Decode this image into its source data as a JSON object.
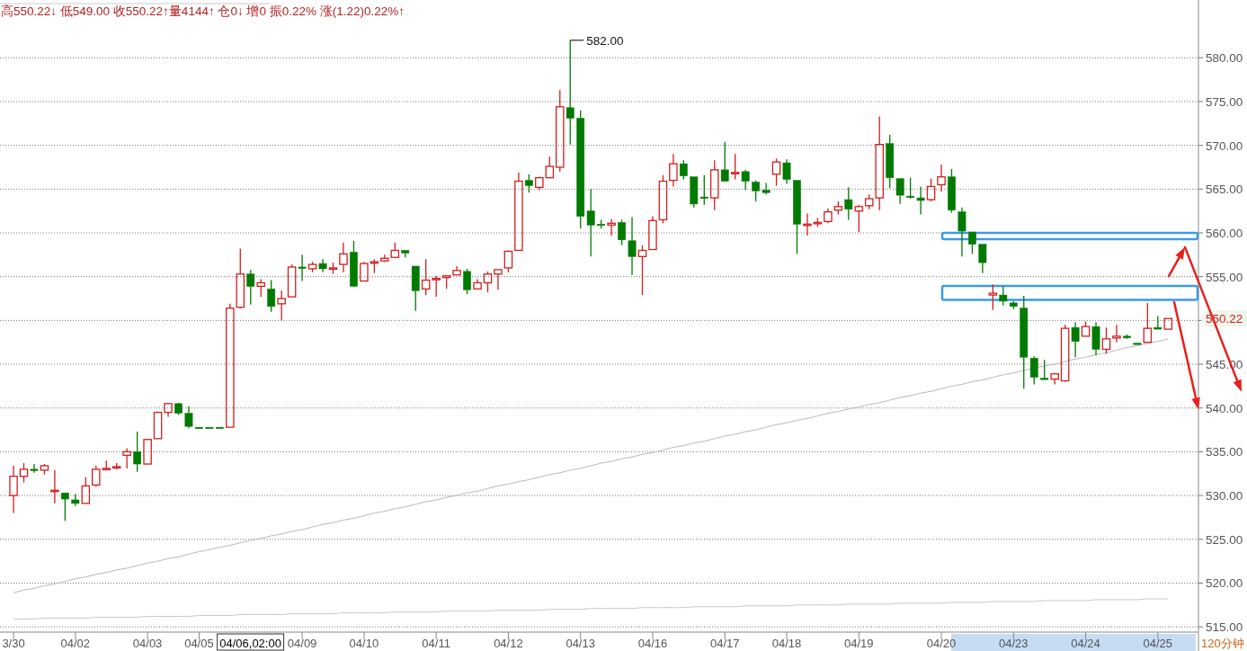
{
  "chart_data": {
    "type": "candlestick",
    "title": "高550.22↓ 低549.00 收550.22↑量4144↑ 仓0↓ 增0 振0.22% 涨(1.22)0.22%↑",
    "categories": [
      "3/30",
      null,
      null,
      null,
      null,
      null,
      "04/02",
      null,
      null,
      null,
      null,
      null,
      null,
      "04/03",
      null,
      null,
      null,
      null,
      "04/05",
      null,
      null,
      null,
      null,
      null,
      null,
      null,
      null,
      null,
      "04/09",
      null,
      null,
      null,
      null,
      null,
      "04/10",
      null,
      null,
      null,
      null,
      null,
      null,
      "04/11",
      null,
      null,
      null,
      null,
      null,
      null,
      "04/12",
      null,
      null,
      null,
      null,
      null,
      null,
      "04/13",
      null,
      null,
      null,
      null,
      null,
      null,
      "04/16",
      null,
      null,
      null,
      null,
      null,
      null,
      "04/17",
      null,
      null,
      null,
      null,
      null,
      "04/18",
      null,
      null,
      null,
      null,
      null,
      null,
      "04/19",
      null,
      null,
      null,
      null,
      null,
      null,
      null,
      "04/20",
      null,
      null,
      null,
      null,
      null,
      null,
      "04/23",
      null,
      null,
      null,
      null,
      null,
      null,
      "04/24",
      null,
      null,
      null,
      null,
      null,
      null,
      "04/25",
      null
    ],
    "ohlc": [
      [
        530.0,
        533.4,
        528.0,
        532.2
      ],
      [
        532.2,
        533.7,
        531.5,
        533.0
      ],
      [
        533.0,
        533.6,
        532.6,
        532.9
      ],
      [
        532.9,
        533.6,
        532.4,
        533.4
      ],
      [
        530.6,
        532.9,
        529.1,
        530.6
      ],
      [
        530.3,
        530.3,
        527.1,
        529.6
      ],
      [
        529.5,
        530.2,
        528.8,
        529.1
      ],
      [
        529.1,
        532.1,
        529.1,
        531.1
      ],
      [
        531.2,
        533.4,
        531.0,
        533.0
      ],
      [
        533.0,
        534.0,
        533.0,
        533.1
      ],
      [
        533.2,
        533.7,
        533.0,
        533.3
      ],
      [
        534.6,
        535.4,
        533.1,
        535.0
      ],
      [
        535.0,
        537.3,
        532.7,
        533.6
      ],
      [
        533.6,
        536.5,
        533.6,
        536.4
      ],
      [
        536.5,
        539.6,
        536.5,
        539.5
      ],
      [
        539.5,
        540.6,
        539.0,
        540.5
      ],
      [
        540.5,
        540.6,
        539.2,
        539.4
      ],
      [
        539.4,
        540.2,
        537.7,
        537.9
      ],
      [
        537.8,
        537.8,
        537.7,
        537.7
      ],
      [
        537.8,
        537.8,
        537.7,
        537.7
      ],
      [
        537.8,
        537.8,
        537.7,
        537.7
      ],
      [
        537.8,
        551.9,
        537.8,
        551.4
      ],
      [
        551.5,
        558.2,
        551.4,
        555.3
      ],
      [
        555.3,
        555.8,
        551.8,
        553.9
      ],
      [
        553.9,
        554.7,
        552.7,
        554.3
      ],
      [
        553.6,
        554.6,
        551.0,
        551.6
      ],
      [
        551.9,
        553.4,
        550.0,
        552.5
      ],
      [
        552.7,
        556.4,
        552.7,
        556.1
      ],
      [
        556.1,
        557.5,
        554.5,
        556.0
      ],
      [
        555.9,
        556.7,
        555.5,
        556.4
      ],
      [
        556.5,
        557.0,
        555.5,
        555.9
      ],
      [
        555.9,
        556.6,
        555.3,
        556.0
      ],
      [
        556.4,
        558.9,
        555.5,
        557.6
      ],
      [
        557.8,
        559.1,
        553.8,
        553.9
      ],
      [
        554.5,
        556.7,
        554.5,
        556.5
      ],
      [
        556.6,
        557.0,
        555.4,
        556.7
      ],
      [
        556.8,
        557.5,
        556.7,
        557.1
      ],
      [
        557.2,
        558.9,
        557.2,
        558.0
      ],
      [
        558.0,
        558.0,
        557.2,
        557.7
      ],
      [
        556.2,
        556.2,
        551.1,
        553.4
      ],
      [
        553.6,
        557.0,
        552.9,
        554.6
      ],
      [
        554.7,
        555.1,
        552.7,
        554.8
      ],
      [
        554.9,
        555.1,
        553.6,
        555.1
      ],
      [
        555.2,
        556.2,
        555.2,
        555.7
      ],
      [
        555.6,
        555.9,
        553.0,
        553.5
      ],
      [
        553.6,
        554.7,
        553.6,
        554.3
      ],
      [
        554.3,
        555.6,
        553.2,
        555.3
      ],
      [
        555.3,
        555.8,
        553.5,
        555.8
      ],
      [
        556.0,
        558.0,
        555.5,
        557.9
      ],
      [
        558.0,
        566.9,
        558.0,
        565.9
      ],
      [
        566.0,
        566.7,
        564.6,
        565.4
      ],
      [
        565.2,
        566.4,
        564.9,
        566.3
      ],
      [
        566.3,
        568.7,
        566.3,
        567.6
      ],
      [
        567.5,
        576.3,
        567.0,
        574.4
      ],
      [
        574.3,
        582.0,
        570.1,
        573.1
      ],
      [
        573.1,
        574.0,
        560.5,
        561.9
      ],
      [
        562.5,
        565.0,
        557.3,
        560.9
      ],
      [
        561.0,
        561.5,
        560.5,
        560.9
      ],
      [
        560.9,
        561.6,
        559.7,
        561.1
      ],
      [
        561.2,
        561.5,
        558.6,
        559.2
      ],
      [
        559.1,
        561.8,
        555.2,
        557.3
      ],
      [
        557.3,
        558.6,
        552.9,
        558.0
      ],
      [
        558.1,
        561.9,
        558.1,
        561.4
      ],
      [
        561.5,
        566.6,
        561.1,
        565.9
      ],
      [
        566.0,
        569.0,
        565.3,
        567.9
      ],
      [
        567.9,
        568.3,
        566.1,
        566.5
      ],
      [
        566.4,
        566.4,
        562.9,
        563.3
      ],
      [
        564.1,
        566.6,
        563.2,
        564.0
      ],
      [
        564.0,
        568.3,
        562.6,
        567.2
      ],
      [
        567.2,
        570.4,
        565.9,
        565.9
      ],
      [
        566.8,
        569.0,
        566.1,
        566.9
      ],
      [
        567.0,
        567.2,
        564.9,
        565.9
      ],
      [
        565.8,
        566.0,
        563.6,
        564.8
      ],
      [
        564.9,
        565.7,
        564.4,
        564.6
      ],
      [
        566.7,
        568.5,
        565.4,
        568.1
      ],
      [
        568.0,
        568.4,
        565.6,
        566.1
      ],
      [
        566.0,
        566.0,
        557.6,
        561.0
      ],
      [
        560.9,
        562.2,
        559.7,
        561.0
      ],
      [
        561.1,
        561.7,
        560.7,
        561.2
      ],
      [
        561.3,
        562.8,
        561.1,
        562.4
      ],
      [
        562.6,
        563.6,
        562.1,
        563.0
      ],
      [
        563.8,
        565.2,
        561.5,
        562.7
      ],
      [
        562.5,
        563.2,
        560.1,
        563.0
      ],
      [
        563.1,
        564.4,
        562.7,
        563.9
      ],
      [
        564.0,
        573.3,
        562.6,
        570.1
      ],
      [
        570.2,
        571.2,
        565.1,
        566.3
      ],
      [
        566.2,
        566.2,
        563.3,
        564.3
      ],
      [
        564.2,
        566.3,
        563.9,
        564.1
      ],
      [
        564.0,
        565.3,
        562.1,
        563.7
      ],
      [
        563.8,
        566.2,
        563.6,
        565.3
      ],
      [
        565.5,
        567.8,
        564.7,
        566.4
      ],
      [
        566.4,
        567.3,
        562.3,
        562.6
      ],
      [
        562.4,
        562.9,
        557.3,
        560.2
      ],
      [
        560.1,
        560.1,
        557.6,
        558.7
      ],
      [
        558.7,
        558.7,
        555.4,
        556.6
      ],
      [
        552.9,
        554.1,
        551.2,
        553.1
      ],
      [
        552.9,
        553.9,
        551.7,
        552.2
      ],
      [
        552.0,
        552.2,
        551.3,
        551.6
      ],
      [
        551.4,
        552.8,
        542.2,
        545.8
      ],
      [
        545.7,
        545.9,
        542.7,
        543.5
      ],
      [
        543.4,
        545.5,
        543.2,
        543.3
      ],
      [
        543.3,
        544.0,
        542.7,
        543.9
      ],
      [
        543.1,
        549.5,
        543.0,
        549.1
      ],
      [
        549.2,
        549.8,
        545.8,
        547.6
      ],
      [
        548.2,
        549.9,
        548.2,
        549.3
      ],
      [
        549.3,
        549.8,
        546.0,
        546.7
      ],
      [
        546.7,
        549.2,
        546.2,
        547.9
      ],
      [
        548.0,
        549.5,
        547.5,
        548.2
      ],
      [
        548.2,
        548.4,
        547.9,
        548.0
      ],
      [
        547.4,
        547.4,
        547.3,
        547.3
      ],
      [
        547.5,
        552.0,
        547.5,
        549.1
      ],
      [
        549.2,
        550.5,
        549.0,
        549.0
      ],
      [
        549.0,
        550.22,
        549.0,
        550.22
      ]
    ],
    "ylim": [
      514.4,
      586.6
    ],
    "yticks": [
      {
        "value": 515,
        "label": "515.00"
      },
      {
        "value": 520,
        "label": "520.00"
      },
      {
        "value": 525,
        "label": "525.00"
      },
      {
        "value": 530,
        "label": "530.00"
      },
      {
        "value": 535,
        "label": "535.00"
      },
      {
        "value": 540,
        "label": "540.00"
      },
      {
        "value": 545,
        "label": "545.00"
      },
      {
        "value": 550,
        "label": null
      },
      {
        "value": 555,
        "label": "555.00"
      },
      {
        "value": 560,
        "label": "560.00"
      },
      {
        "value": 565,
        "label": "565.00"
      },
      {
        "value": 570,
        "label": "570.00"
      },
      {
        "value": 575,
        "label": "575.00"
      },
      {
        "value": 580,
        "label": "580.00"
      }
    ],
    "grid": "y",
    "series": [
      {
        "type": "line",
        "color": "#b8b8b8",
        "values": [
          518.9,
          519.2,
          519.4,
          519.7,
          519.9,
          520.2,
          520.5,
          520.7,
          521.0,
          521.2,
          521.5,
          521.7,
          522.0,
          522.3,
          522.5,
          522.8,
          523.0,
          523.3,
          523.6,
          523.8,
          524.1,
          524.3,
          524.6,
          524.9,
          525.1,
          525.4,
          525.6,
          525.9,
          526.1,
          526.4,
          526.7,
          526.9,
          527.2,
          527.4,
          527.7,
          528.0,
          528.2,
          528.5,
          528.7,
          529.0,
          529.3,
          529.5,
          529.8,
          530.0,
          530.3,
          530.5,
          530.8,
          531.1,
          531.3,
          531.6,
          531.8,
          532.1,
          532.4,
          532.6,
          532.9,
          533.1,
          533.4,
          533.7,
          533.9,
          534.2,
          534.4,
          534.7,
          534.9,
          535.2,
          535.5,
          535.7,
          536.0,
          536.2,
          536.5,
          536.8,
          537.0,
          537.3,
          537.5,
          537.8,
          538.1,
          538.3,
          538.6,
          538.8,
          539.1,
          539.4,
          539.6,
          539.9,
          540.1,
          540.4,
          540.6,
          540.9,
          541.2,
          541.4,
          541.7,
          541.9,
          542.2,
          542.5,
          542.7,
          543.0,
          543.2,
          543.5,
          543.8,
          544.0,
          544.3,
          null,
          544.8,
          545.0,
          545.3,
          545.6,
          545.8,
          546.1,
          546.3,
          546.6,
          546.9,
          547.1,
          547.4,
          547.6,
          547.9
        ]
      },
      {
        "type": "line",
        "color": "#c8c8c8",
        "values": [
          515.9,
          515.9,
          515.9,
          516.0,
          516.0,
          516.0,
          516.0,
          516.0,
          516.1,
          516.1,
          516.1,
          516.1,
          516.1,
          516.2,
          516.2,
          516.2,
          516.2,
          516.2,
          516.3,
          516.3,
          516.3,
          516.3,
          516.4,
          516.4,
          516.4,
          516.4,
          516.4,
          516.5,
          516.5,
          516.5,
          516.5,
          516.5,
          516.6,
          516.6,
          516.6,
          516.6,
          516.6,
          516.7,
          516.7,
          516.7,
          516.7,
          516.7,
          516.8,
          516.8,
          516.8,
          516.8,
          516.8,
          516.9,
          516.9,
          516.9,
          516.9,
          516.9,
          517.0,
          517.0,
          517.0,
          517.0,
          517.1,
          517.1,
          517.1,
          517.1,
          517.1,
          517.2,
          517.2,
          517.2,
          517.2,
          517.2,
          517.3,
          517.3,
          517.3,
          517.3,
          517.3,
          517.4,
          517.4,
          517.4,
          517.4,
          517.4,
          517.5,
          517.5,
          517.5,
          517.5,
          517.5,
          517.6,
          517.6,
          517.6,
          517.6,
          517.6,
          517.7,
          517.7,
          517.7,
          517.7,
          517.7,
          517.8,
          517.8,
          517.8,
          517.8,
          517.9,
          517.9,
          517.9,
          517.9,
          517.9,
          518.0,
          518.0,
          518.0,
          518.0,
          518.0,
          518.1,
          518.1,
          518.1,
          518.1,
          518.1,
          518.2,
          518.2,
          518.2
        ]
      }
    ],
    "annotations": [
      "582.00",
      "550.22",
      "04/06,02:00",
      "120分钟"
    ]
  }
}
